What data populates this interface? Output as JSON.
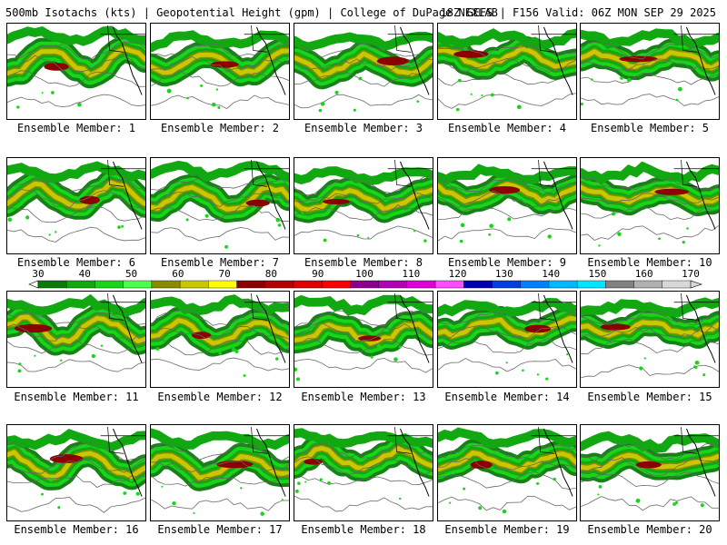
{
  "header": {
    "title": "500mb Isotachs (kts) | Geopotential Height (gpm) | College of DuPage NEXLAB",
    "run_info": "18Z GEFS | F156 Valid: 06Z MON SEP 29 2025"
  },
  "panels": [
    {
      "caption": "Ensemble Member: 1"
    },
    {
      "caption": "Ensemble Member: 2"
    },
    {
      "caption": "Ensemble Member: 3"
    },
    {
      "caption": "Ensemble Member: 4"
    },
    {
      "caption": "Ensemble Member: 5"
    },
    {
      "caption": "Ensemble Member: 6"
    },
    {
      "caption": "Ensemble Member: 7"
    },
    {
      "caption": "Ensemble Member: 8"
    },
    {
      "caption": "Ensemble Member: 9"
    },
    {
      "caption": "Ensemble Member: 10"
    },
    {
      "caption": "Ensemble Member: 11"
    },
    {
      "caption": "Ensemble Member: 12"
    },
    {
      "caption": "Ensemble Member: 13"
    },
    {
      "caption": "Ensemble Member: 14"
    },
    {
      "caption": "Ensemble Member: 15"
    },
    {
      "caption": "Ensemble Member: 16"
    },
    {
      "caption": "Ensemble Member: 17"
    },
    {
      "caption": "Ensemble Member: 18"
    },
    {
      "caption": "Ensemble Member: 19"
    },
    {
      "caption": "Ensemble Member: 20"
    }
  ],
  "colorbar": {
    "labels": [
      "30",
      "40",
      "50",
      "60",
      "70",
      "80",
      "90",
      "100",
      "110",
      "120",
      "130",
      "140",
      "150",
      "160",
      "170"
    ],
    "colors": [
      "#0b7a0b",
      "#12a812",
      "#19d519",
      "#4cff4c",
      "#8b8b00",
      "#c8c800",
      "#ffff00",
      "#8b0000",
      "#b30000",
      "#e00000",
      "#ff0000",
      "#8b008b",
      "#b400b4",
      "#dc00dc",
      "#ff4cff",
      "#0000b0",
      "#0040e0",
      "#0080ff",
      "#00b8ff",
      "#00e5ff",
      "#808080",
      "#b0b0b0",
      "#d8d8d8"
    ]
  }
}
